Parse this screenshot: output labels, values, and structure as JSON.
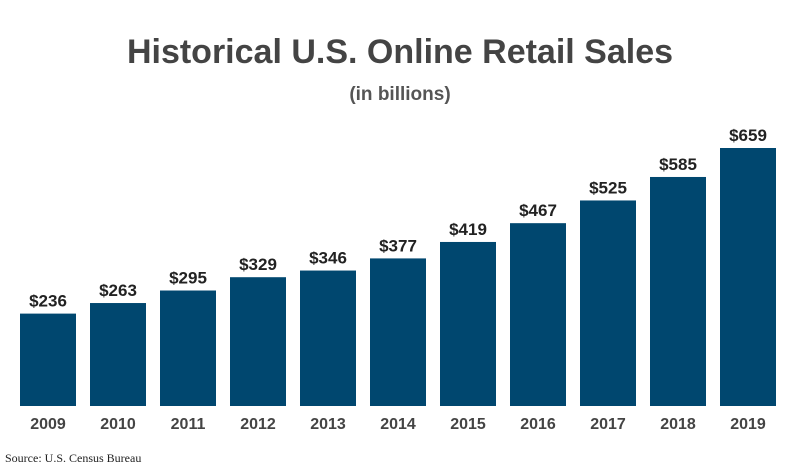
{
  "chart_data": {
    "type": "bar",
    "title": "Historical U.S. Online Retail Sales",
    "subtitle": "(in billions)",
    "source": "Source: U.S. Census Bureau",
    "categories": [
      "2009",
      "2010",
      "2011",
      "2012",
      "2013",
      "2014",
      "2015",
      "2016",
      "2017",
      "2018",
      "2019"
    ],
    "values": [
      236,
      263,
      295,
      329,
      346,
      377,
      419,
      467,
      525,
      585,
      659
    ],
    "value_labels": [
      "$236",
      "$263",
      "$295",
      "$329",
      "$346",
      "$377",
      "$419",
      "$467",
      "$525",
      "$585",
      "$659"
    ],
    "xlabel": "",
    "ylabel": "",
    "ylim": [
      0,
      700
    ],
    "grid": false,
    "legend": "none",
    "bar_color": "#00476f"
  }
}
